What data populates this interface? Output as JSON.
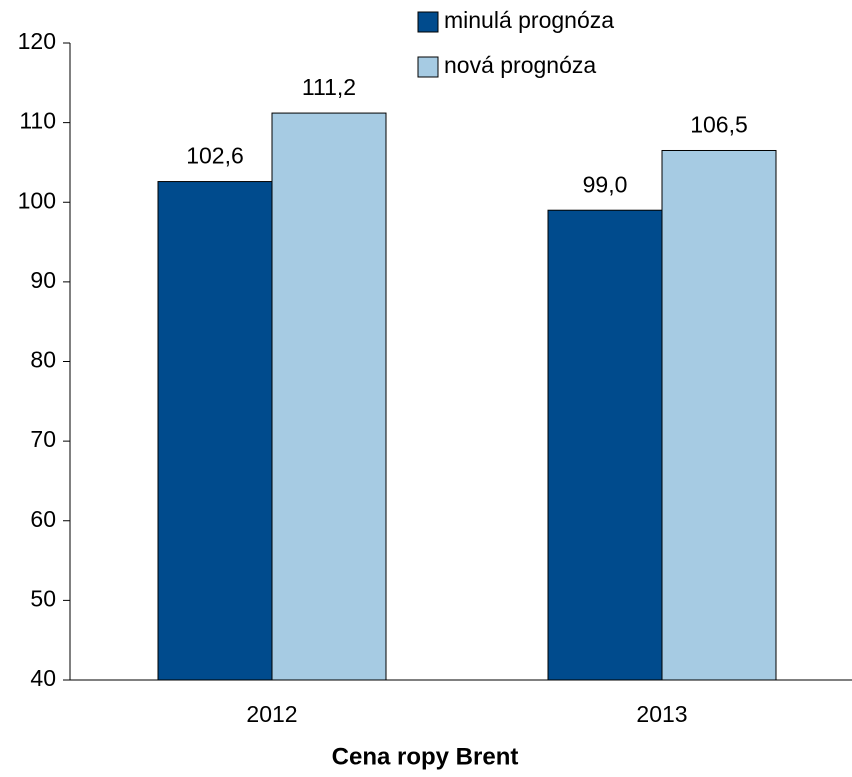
{
  "chart_data": {
    "type": "bar",
    "x_label": "Cena ropy Brent",
    "categories": [
      "2012",
      "2013"
    ],
    "series": [
      {
        "name": "minulá prognóza",
        "color": "#004b8d",
        "values": [
          102.6,
          99.0
        ],
        "value_labels": [
          "102,6",
          "99,0"
        ]
      },
      {
        "name": "nová prognóza",
        "color": "#a6cbe3",
        "values": [
          111.2,
          106.5
        ],
        "value_labels": [
          "111,2",
          "106,5"
        ]
      }
    ],
    "ylim": [
      40,
      120
    ],
    "yticks": [
      40,
      50,
      60,
      70,
      80,
      90,
      100,
      110,
      120
    ],
    "grid": false,
    "legend": "top-right"
  }
}
